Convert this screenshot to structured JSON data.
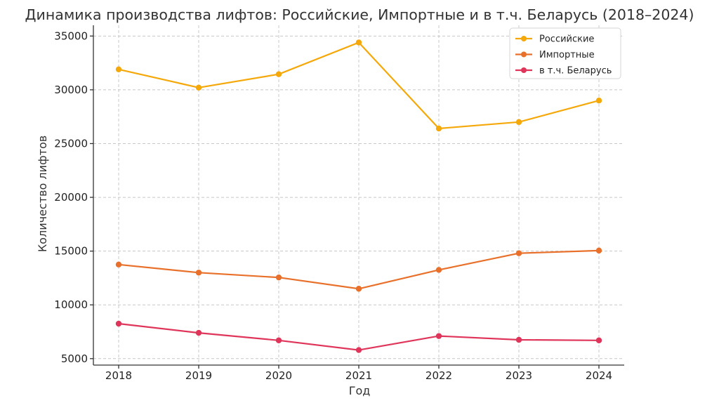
{
  "chart_data": {
    "type": "line",
    "title": "Динамика производства лифтов: Российские, Импортные и в т.ч. Беларусь (2018–2024)",
    "xlabel": "Год",
    "ylabel": "Количество лифтов",
    "x": [
      2018,
      2019,
      2020,
      2021,
      2022,
      2023,
      2024
    ],
    "x_tick_labels": [
      "2018",
      "2019",
      "2020",
      "2021",
      "2022",
      "2023",
      "2024"
    ],
    "y_ticks": [
      5000,
      10000,
      15000,
      20000,
      25000,
      30000,
      35000
    ],
    "y_tick_labels": [
      "5000",
      "10000",
      "15000",
      "20000",
      "25000",
      "30000",
      "35000"
    ],
    "ylim": [
      4400,
      36000
    ],
    "grid": true,
    "legend_position": "top-right",
    "series": [
      {
        "name": "Российские",
        "color": "#f5a80a",
        "values": [
          31900,
          30200,
          31450,
          34400,
          26400,
          27000,
          29000
        ]
      },
      {
        "name": "Импортные",
        "color": "#e8702a",
        "values": [
          13750,
          13000,
          12550,
          11500,
          13250,
          14800,
          15050
        ]
      },
      {
        "name": "в т.ч. Беларусь",
        "color": "#e0355a",
        "values": [
          8250,
          7400,
          6700,
          5800,
          7100,
          6750,
          6700
        ]
      }
    ]
  }
}
